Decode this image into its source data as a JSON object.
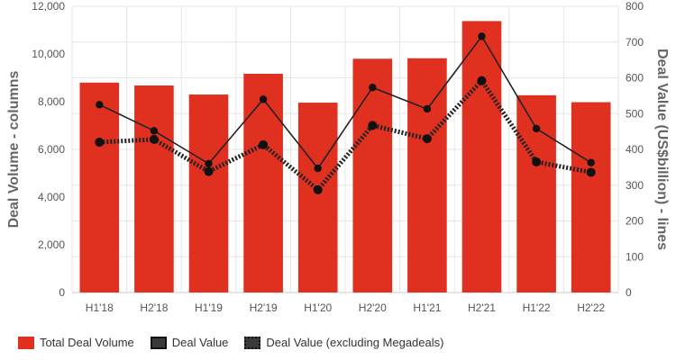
{
  "chart_data": {
    "type": "bar",
    "categories": [
      "H1'18",
      "H2'18",
      "H1'19",
      "H2'19",
      "H1'20",
      "H2'20",
      "H1'21",
      "H2'21",
      "H1'22",
      "H2'22"
    ],
    "series": [
      {
        "name": "Total Deal Volume",
        "kind": "bar",
        "axis": "left",
        "values": [
          8800,
          8680,
          8300,
          9170,
          7960,
          9800,
          9820,
          11380,
          8270,
          7980
        ]
      },
      {
        "name": "Deal Value",
        "kind": "line",
        "axis": "right",
        "values": [
          525,
          452,
          360,
          540,
          347,
          573,
          513,
          716,
          458,
          363
        ]
      },
      {
        "name": "Deal Value (excluding Megadeals)",
        "kind": "line-dotted",
        "axis": "right",
        "values": [
          420,
          428,
          338,
          413,
          287,
          467,
          430,
          592,
          365,
          336
        ]
      }
    ],
    "ylabel_left": "Deal Volume - columns",
    "ylabel_right": "Deal Value (US$billion) - lines",
    "ylim_left": [
      0,
      12000
    ],
    "ylim_right": [
      0,
      800
    ],
    "yticks_left": [
      "0",
      "2,000",
      "4,000",
      "6,000",
      "8,000",
      "10,000",
      "12,000"
    ],
    "yticks_right": [
      "0",
      "100",
      "200",
      "300",
      "400",
      "500",
      "600",
      "700",
      "800"
    ],
    "grid": true,
    "legend_position": "bottom-left",
    "colors": {
      "bar": "#e03020",
      "line": "#222222",
      "dotted": "#222222",
      "grid": "#e6e6e6"
    }
  }
}
